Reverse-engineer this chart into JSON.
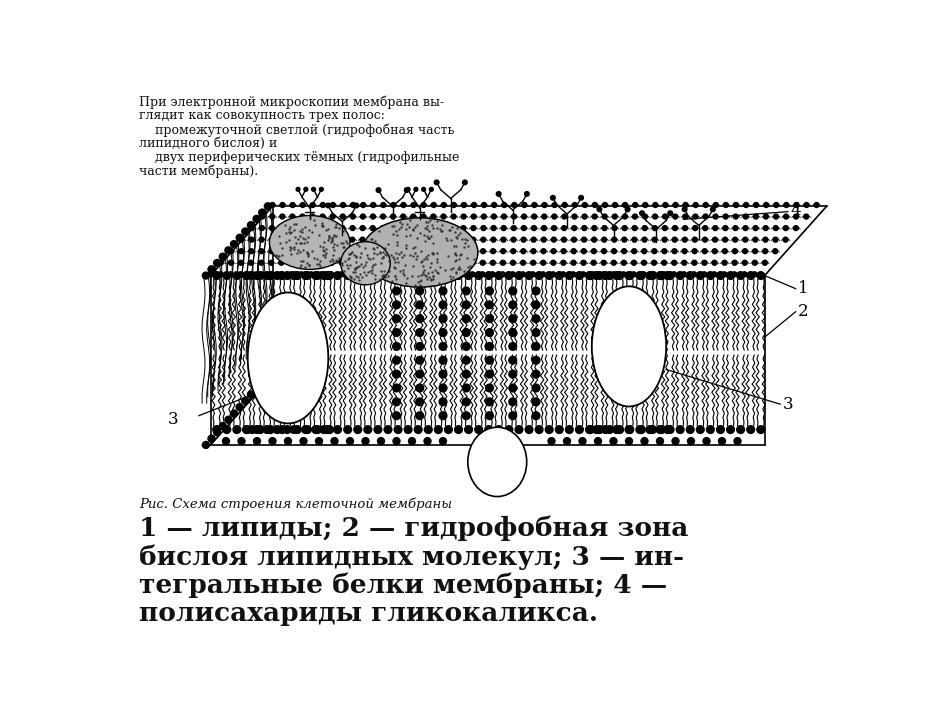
{
  "bg_color": "#f0ece0",
  "text_color": "#111111",
  "top_text_lines": [
    "При электронной микроскопии мембрана вы-",
    "глядит как совокупность трех полос:",
    "    промежуточной светлой (гидрофобная часть",
    "липидного бислоя) и",
    "    двух периферических тёмных (гидрофильные",
    "части мембраны)."
  ],
  "caption_small": "Рис. Схема строения клеточной мембраны",
  "caption_large_lines": [
    "1 — липиды; 2 — гидрофобная зона",
    "бислоя липидных молекул; 3 — ин-",
    "тегральные белки мембраны; 4 —",
    "полисахариды гликокаликса."
  ]
}
